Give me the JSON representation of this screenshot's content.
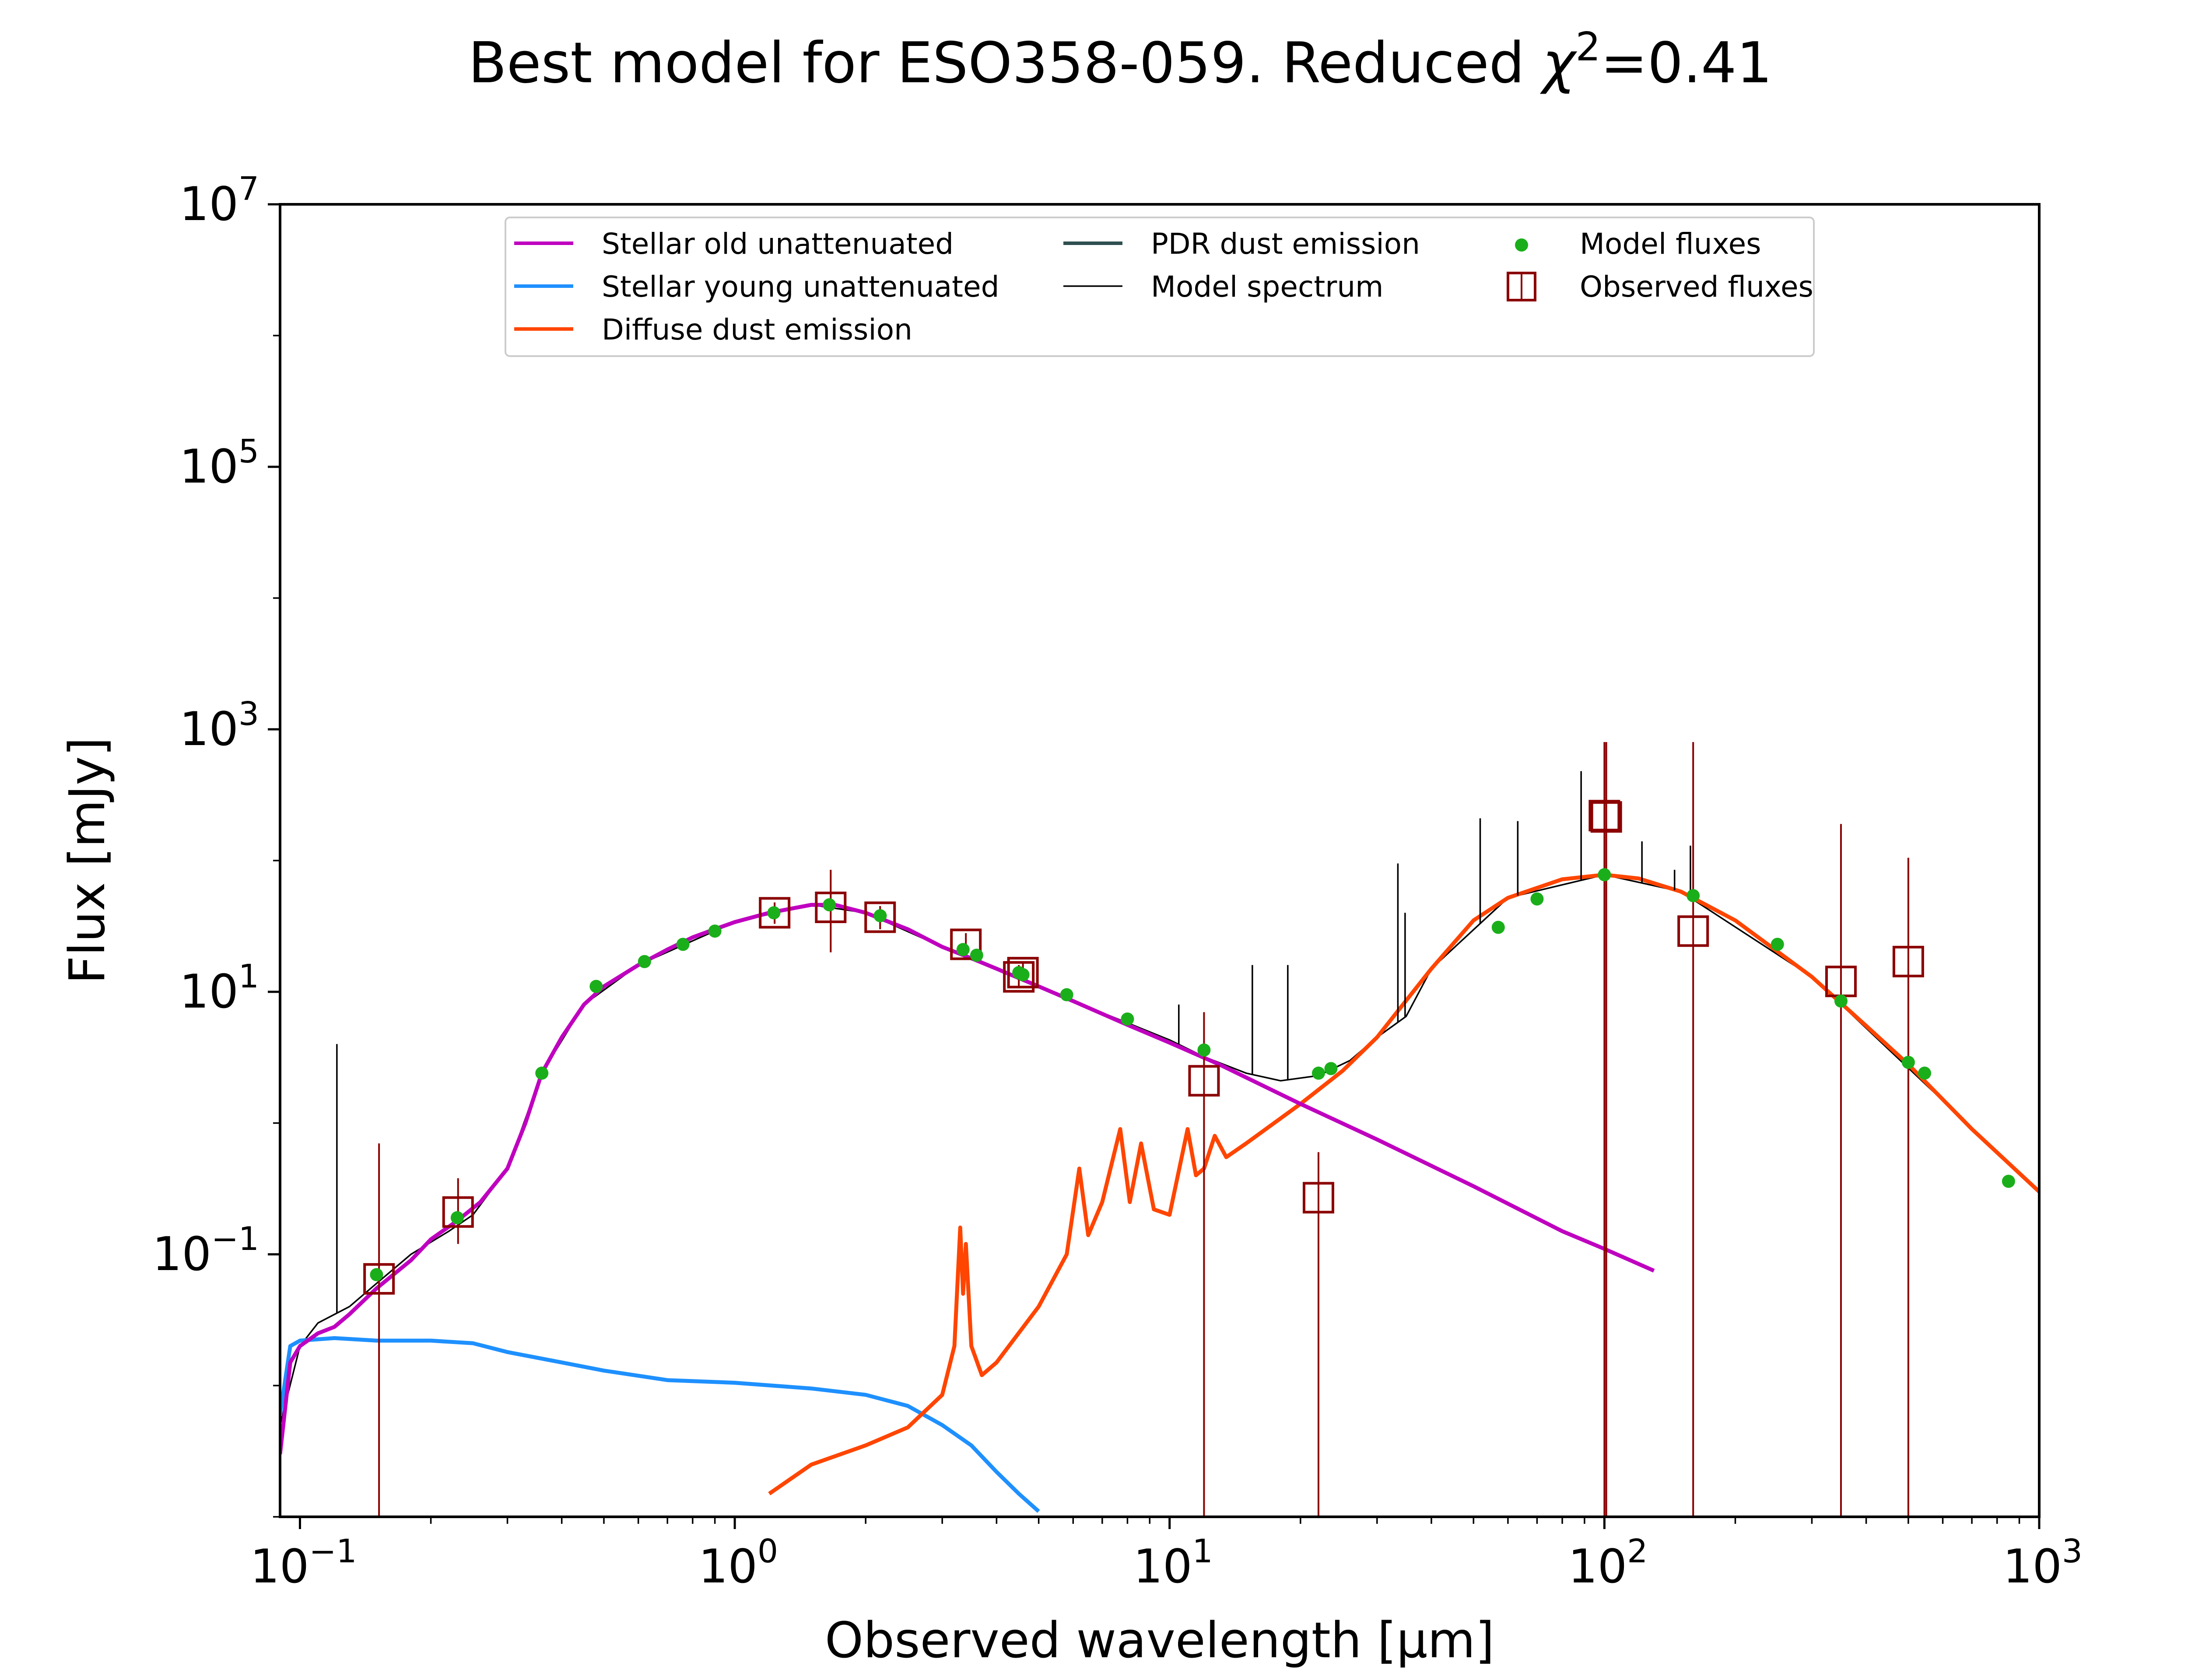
{
  "chart_data": {
    "type": "line",
    "title_prefix": "Best model for ESO358-059. Reduced ",
    "title_chi": "χ",
    "title_chi_exp": "2",
    "title_suffix": "=0.41",
    "xlabel": "Observed wavelength [μm]",
    "ylabel": "Flux [mJy]",
    "xscale": "log",
    "yscale": "log",
    "xlim": [
      0.09,
      1000
    ],
    "ylim": [
      0.001,
      10000000
    ],
    "xticks": [
      {
        "value": 0.1,
        "base": "10",
        "exp": "−1"
      },
      {
        "value": 1,
        "base": "10",
        "exp": "0"
      },
      {
        "value": 10,
        "base": "10",
        "exp": "1"
      },
      {
        "value": 100,
        "base": "10",
        "exp": "2"
      },
      {
        "value": 1000,
        "base": "10",
        "exp": "3"
      }
    ],
    "yticks": [
      {
        "value": 0.1,
        "base": "10",
        "exp": "−1"
      },
      {
        "value": 10,
        "base": "10",
        "exp": "1"
      },
      {
        "value": 1000,
        "base": "10",
        "exp": "3"
      },
      {
        "value": 100000,
        "base": "10",
        "exp": "5"
      },
      {
        "value": 10000000,
        "base": "10",
        "exp": "7"
      }
    ],
    "legend_position": "top-center",
    "colors": {
      "stellar_old": "#bf00bf",
      "stellar_young": "#1e90ff",
      "diffuse": "#ff4500",
      "pdr": "#2f4f4f",
      "model_spectrum": "#000000",
      "model_fluxes": "#1aaf1a",
      "observed": "#8b0000"
    },
    "legend": [
      {
        "label": "Stellar old unattenuated",
        "kind": "line",
        "color": "#bf00bf"
      },
      {
        "label": "Stellar young unattenuated",
        "kind": "line",
        "color": "#1e90ff"
      },
      {
        "label": "Diffuse dust emission",
        "kind": "line",
        "color": "#ff4500"
      },
      {
        "label": "PDR dust emission",
        "kind": "line",
        "color": "#2f4f4f"
      },
      {
        "label": "Model spectrum",
        "kind": "thinline",
        "color": "#000000"
      },
      {
        "label": "Model fluxes",
        "kind": "dot",
        "color": "#1aaf1a"
      },
      {
        "label": "Observed fluxes",
        "kind": "square",
        "color": "#8b0000"
      }
    ],
    "series": [
      {
        "id": "stellar_old",
        "points": [
          [
            0.09,
            0.003
          ],
          [
            0.095,
            0.015
          ],
          [
            0.1,
            0.02
          ],
          [
            0.11,
            0.025
          ],
          [
            0.12,
            0.028
          ],
          [
            0.13,
            0.035
          ],
          [
            0.15,
            0.055
          ],
          [
            0.18,
            0.09
          ],
          [
            0.2,
            0.13
          ],
          [
            0.23,
            0.18
          ],
          [
            0.26,
            0.25
          ],
          [
            0.3,
            0.45
          ],
          [
            0.33,
            1.0
          ],
          [
            0.36,
            2.4
          ],
          [
            0.4,
            4.5
          ],
          [
            0.45,
            8.0
          ],
          [
            0.5,
            11
          ],
          [
            0.6,
            16
          ],
          [
            0.7,
            21
          ],
          [
            0.8,
            26
          ],
          [
            0.9,
            30
          ],
          [
            1.0,
            34
          ],
          [
            1.2,
            40
          ],
          [
            1.5,
            46
          ],
          [
            1.7,
            46
          ],
          [
            2.0,
            40
          ],
          [
            2.5,
            30
          ],
          [
            3.0,
            22
          ],
          [
            3.5,
            18
          ],
          [
            4.0,
            15
          ],
          [
            5.0,
            11
          ],
          [
            6.0,
            8.5
          ],
          [
            8.0,
            5.6
          ],
          [
            10.0,
            4.1
          ],
          [
            13.0,
            2.8
          ],
          [
            20.0,
            1.4
          ],
          [
            30.0,
            0.75
          ],
          [
            50.0,
            0.33
          ],
          [
            80.0,
            0.15
          ],
          [
            100.0,
            0.11
          ],
          [
            130.0,
            0.075
          ]
        ]
      },
      {
        "id": "stellar_young",
        "points": [
          [
            0.09,
            0.006
          ],
          [
            0.095,
            0.02
          ],
          [
            0.1,
            0.022
          ],
          [
            0.12,
            0.023
          ],
          [
            0.15,
            0.022
          ],
          [
            0.2,
            0.022
          ],
          [
            0.25,
            0.021
          ],
          [
            0.3,
            0.018
          ],
          [
            0.4,
            0.015
          ],
          [
            0.5,
            0.013
          ],
          [
            0.7,
            0.011
          ],
          [
            1.0,
            0.0105
          ],
          [
            1.5,
            0.0095
          ],
          [
            2.0,
            0.0085
          ],
          [
            2.5,
            0.007
          ],
          [
            3.0,
            0.005
          ],
          [
            3.5,
            0.0035
          ],
          [
            4.0,
            0.0022
          ],
          [
            4.5,
            0.0015
          ],
          [
            5.0,
            0.0011
          ]
        ]
      },
      {
        "id": "diffuse",
        "points": [
          [
            1.2,
            0.0015
          ],
          [
            1.5,
            0.0025
          ],
          [
            2.0,
            0.0035
          ],
          [
            2.5,
            0.0048
          ],
          [
            3.0,
            0.0085
          ],
          [
            3.2,
            0.02
          ],
          [
            3.3,
            0.16
          ],
          [
            3.35,
            0.05
          ],
          [
            3.4,
            0.12
          ],
          [
            3.5,
            0.02
          ],
          [
            3.7,
            0.012
          ],
          [
            4.0,
            0.015
          ],
          [
            5.0,
            0.04
          ],
          [
            5.8,
            0.1
          ],
          [
            6.2,
            0.45
          ],
          [
            6.5,
            0.14
          ],
          [
            7.0,
            0.25
          ],
          [
            7.7,
            0.9
          ],
          [
            8.1,
            0.25
          ],
          [
            8.6,
            0.7
          ],
          [
            9.2,
            0.22
          ],
          [
            10.0,
            0.2
          ],
          [
            11.0,
            0.9
          ],
          [
            11.5,
            0.4
          ],
          [
            12.0,
            0.45
          ],
          [
            12.7,
            0.8
          ],
          [
            13.5,
            0.55
          ],
          [
            15.0,
            0.7
          ],
          [
            20.0,
            1.4
          ],
          [
            25.0,
            2.5
          ],
          [
            30.0,
            4.5
          ],
          [
            40.0,
            15
          ],
          [
            50.0,
            35
          ],
          [
            60.0,
            52
          ],
          [
            80.0,
            72
          ],
          [
            100.0,
            78
          ],
          [
            120.0,
            73
          ],
          [
            150.0,
            58
          ],
          [
            200.0,
            35
          ],
          [
            300.0,
            13
          ],
          [
            400.0,
            5.5
          ],
          [
            500.0,
            2.8
          ],
          [
            700.0,
            0.9
          ],
          [
            1000.0,
            0.3
          ]
        ]
      },
      {
        "id": "model_spectrum",
        "points": [
          [
            0.09,
            0.005
          ],
          [
            0.1,
            0.02
          ],
          [
            0.11,
            0.03
          ],
          [
            0.13,
            0.04
          ],
          [
            0.15,
            0.06
          ],
          [
            0.18,
            0.1
          ],
          [
            0.22,
            0.15
          ],
          [
            0.25,
            0.2
          ],
          [
            0.3,
            0.45
          ],
          [
            0.36,
            2.4
          ],
          [
            0.45,
            8.0
          ],
          [
            0.6,
            16
          ],
          [
            1.0,
            34
          ],
          [
            1.5,
            46
          ],
          [
            2.0,
            40
          ],
          [
            3.0,
            22
          ],
          [
            4.0,
            15
          ],
          [
            6.0,
            8.5
          ],
          [
            8.0,
            5.8
          ],
          [
            10.0,
            4.3
          ],
          [
            12.0,
            3.2
          ],
          [
            15.0,
            2.4
          ],
          [
            18.0,
            2.1
          ],
          [
            22.0,
            2.3
          ],
          [
            26.0,
            3.0
          ],
          [
            30.0,
            4.5
          ],
          [
            35.0,
            6.5
          ],
          [
            40.0,
            15
          ],
          [
            60.0,
            52
          ],
          [
            100.0,
            78
          ],
          [
            150.0,
            58
          ],
          [
            300.0,
            13
          ],
          [
            1000.0,
            0.3
          ]
        ]
      }
    ],
    "spikes": [
      {
        "x": 0.1216,
        "top": 4.0
      },
      {
        "x": 10.5,
        "top": 8.0
      },
      {
        "x": 15.5,
        "top": 16
      },
      {
        "x": 18.7,
        "top": 16
      },
      {
        "x": 33.5,
        "top": 95
      },
      {
        "x": 34.8,
        "top": 40
      },
      {
        "x": 51.8,
        "top": 210
      },
      {
        "x": 63.2,
        "top": 200
      },
      {
        "x": 88.4,
        "top": 480
      },
      {
        "x": 122,
        "top": 140
      },
      {
        "x": 145,
        "top": 85
      },
      {
        "x": 157.7,
        "top": 130
      }
    ],
    "model_fluxes": [
      {
        "x": 0.15,
        "y": 0.07
      },
      {
        "x": 0.23,
        "y": 0.19
      },
      {
        "x": 0.36,
        "y": 2.4
      },
      {
        "x": 0.48,
        "y": 11
      },
      {
        "x": 0.62,
        "y": 17
      },
      {
        "x": 0.76,
        "y": 23
      },
      {
        "x": 0.9,
        "y": 29
      },
      {
        "x": 1.23,
        "y": 40
      },
      {
        "x": 1.65,
        "y": 46
      },
      {
        "x": 2.16,
        "y": 38
      },
      {
        "x": 3.35,
        "y": 21
      },
      {
        "x": 3.6,
        "y": 19
      },
      {
        "x": 4.5,
        "y": 14
      },
      {
        "x": 4.6,
        "y": 13.5
      },
      {
        "x": 5.8,
        "y": 9.5
      },
      {
        "x": 8.0,
        "y": 6.2
      },
      {
        "x": 12,
        "y": 3.6
      },
      {
        "x": 22,
        "y": 2.4
      },
      {
        "x": 23.5,
        "y": 2.6
      },
      {
        "x": 57,
        "y": 31
      },
      {
        "x": 70,
        "y": 51
      },
      {
        "x": 100,
        "y": 78
      },
      {
        "x": 160,
        "y": 54
      },
      {
        "x": 250,
        "y": 23
      },
      {
        "x": 350,
        "y": 8.5
      },
      {
        "x": 500,
        "y": 2.9
      },
      {
        "x": 545,
        "y": 2.4
      },
      {
        "x": 850,
        "y": 0.36
      }
    ],
    "observed_fluxes": [
      {
        "x": 0.152,
        "y": 0.065,
        "lo": 0.001,
        "hi": 0.7
      },
      {
        "x": 0.231,
        "y": 0.21,
        "lo": 0.12,
        "hi": 0.38
      },
      {
        "x": 1.235,
        "y": 40,
        "lo": 33,
        "hi": 48
      },
      {
        "x": 1.662,
        "y": 44,
        "lo": 20,
        "hi": 85
      },
      {
        "x": 2.159,
        "y": 37,
        "lo": 30,
        "hi": 45
      },
      {
        "x": 3.4,
        "y": 23,
        "lo": 19,
        "hi": 28
      },
      {
        "x": 4.5,
        "y": 13,
        "lo": 11,
        "hi": 16
      },
      {
        "x": 4.6,
        "y": 14,
        "lo": 12,
        "hi": 17
      },
      {
        "x": 12,
        "y": 2.1,
        "lo": 0.001,
        "hi": 7.0
      },
      {
        "x": 22,
        "y": 0.27,
        "lo": 0.001,
        "hi": 0.6
      },
      {
        "x": 100,
        "y": 220,
        "lo": 0.001,
        "hi": 800
      },
      {
        "x": 101,
        "y": 215,
        "lo": 0.001,
        "hi": 800
      },
      {
        "x": 160,
        "y": 29,
        "lo": 0.001,
        "hi": 800
      },
      {
        "x": 350,
        "y": 12,
        "lo": 0.001,
        "hi": 190
      },
      {
        "x": 500,
        "y": 17,
        "lo": 0.001,
        "hi": 105
      }
    ]
  }
}
